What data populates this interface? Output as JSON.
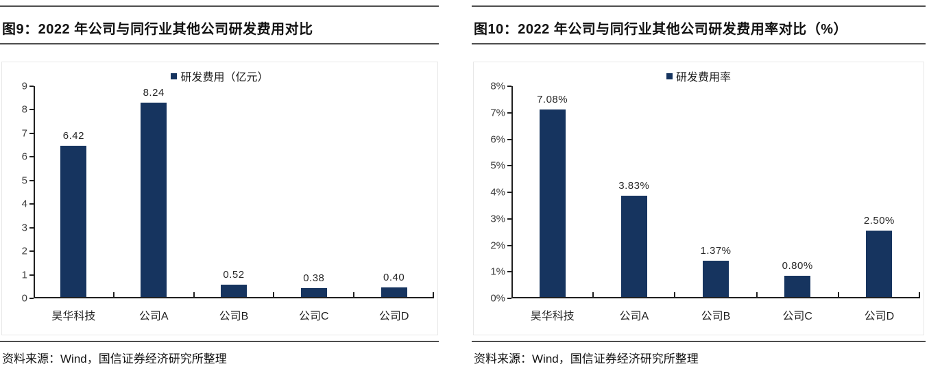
{
  "colors": {
    "bar": "#16345F",
    "rule": "#4d4d4d",
    "axis": "#1f1f1f",
    "background": "#ffffff"
  },
  "panels": [
    {
      "title": "图9：2022 年公司与同行业其他公司研发费用对比",
      "source": "资料来源：Wind，国信证券经济研究所整理"
    },
    {
      "title": "图10：2022 年公司与同行业其他公司研发费用率对比（%）",
      "source": "资料来源：Wind，国信证券经济研究所整理"
    }
  ],
  "chart_data": [
    {
      "type": "bar",
      "title": "图9：2022 年公司与同行业其他公司研发费用对比",
      "legend": [
        "研发费用（亿元）"
      ],
      "legend_position": "top-center",
      "categories": [
        "昊华科技",
        "公司A",
        "公司B",
        "公司C",
        "公司D"
      ],
      "values": [
        6.42,
        8.24,
        0.52,
        0.38,
        0.4
      ],
      "value_labels": [
        "6.42",
        "8.24",
        "0.52",
        "0.38",
        "0.40"
      ],
      "ylim": [
        0,
        9
      ],
      "ytick_step": 1,
      "ytick_suffix": "",
      "grid": false,
      "bar_color": "#16345F",
      "source": "资料来源：Wind，国信证券经济研究所整理"
    },
    {
      "type": "bar",
      "title": "图10：2022 年公司与同行业其他公司研发费用率对比（%）",
      "legend": [
        "研发费用率"
      ],
      "legend_position": "top-center",
      "categories": [
        "昊华科技",
        "公司A",
        "公司B",
        "公司C",
        "公司D"
      ],
      "values": [
        7.08,
        3.83,
        1.37,
        0.8,
        2.5
      ],
      "value_labels": [
        "7.08%",
        "3.83%",
        "1.37%",
        "0.80%",
        "2.50%"
      ],
      "ylim": [
        0,
        8
      ],
      "ytick_step": 1,
      "ytick_suffix": "%",
      "grid": false,
      "bar_color": "#16345F",
      "source": "资料来源：Wind，国信证券经济研究所整理"
    }
  ]
}
